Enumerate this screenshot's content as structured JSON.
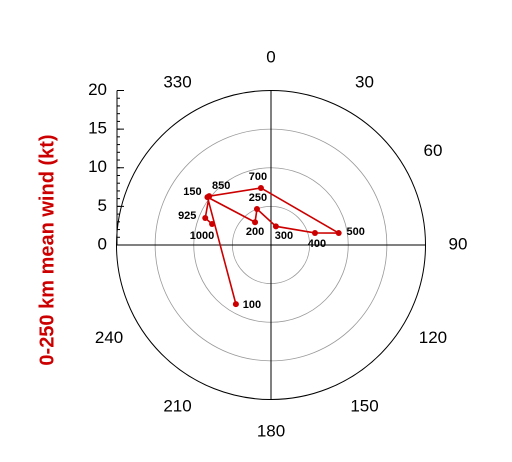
{
  "chart_data": {
    "type": "polar",
    "ylabel": "0-250 km mean wind (kt)",
    "rlim": [
      0,
      20
    ],
    "rticks": [
      0,
      5,
      10,
      15,
      20
    ],
    "theta_ticks": [
      0,
      30,
      60,
      90,
      120,
      150,
      180,
      210,
      240,
      330
    ],
    "color": "#cc0000",
    "labels": [
      "1000",
      "925",
      "850",
      "700",
      "500",
      "400",
      "300",
      "250",
      "200",
      "150",
      "100"
    ],
    "theta": [
      289.6,
      292.3,
      308.3,
      350,
      80,
      74.7,
      14.7,
      338.7,
      325,
      307,
      210.7
    ],
    "r": [
      8.1,
      9.2,
      10.2,
      7.5,
      8.9,
      5.9,
      2.5,
      5.0,
      3.6,
      10.3,
      8.9
    ]
  }
}
